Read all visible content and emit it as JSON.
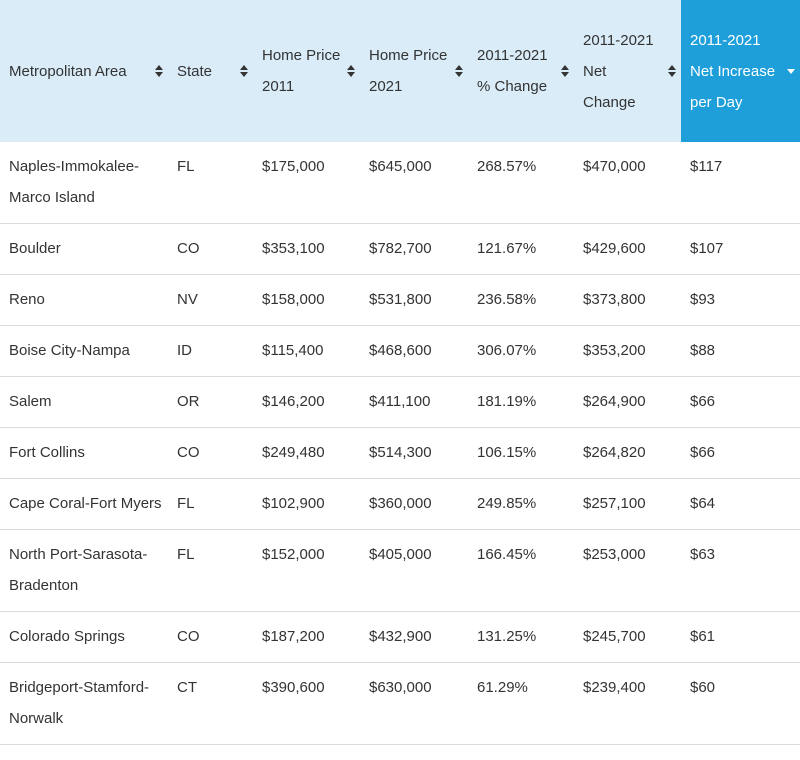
{
  "header": {
    "columns": [
      "Metropolitan Area",
      "State",
      "Home Price 2011",
      "Home Price 2021",
      "2011-2021 % Change",
      "2011-2021 Net Change",
      "2011-2021 Net Increase per Day"
    ]
  },
  "table": {
    "rows": [
      [
        "Naples-Immokalee-Marco Island",
        "FL",
        "$175,000",
        "$645,000",
        "268.57%",
        "$470,000",
        "$117"
      ],
      [
        "Boulder",
        "CO",
        "$353,100",
        "$782,700",
        "121.67%",
        "$429,600",
        "$107"
      ],
      [
        "Reno",
        "NV",
        "$158,000",
        "$531,800",
        "236.58%",
        "$373,800",
        "$93"
      ],
      [
        "Boise City-Nampa",
        "ID",
        "$115,400",
        "$468,600",
        "306.07%",
        "$353,200",
        "$88"
      ],
      [
        "Salem",
        "OR",
        "$146,200",
        "$411,100",
        "181.19%",
        "$264,900",
        "$66"
      ],
      [
        "Fort Collins",
        "CO",
        "$249,480",
        "$514,300",
        "106.15%",
        "$264,820",
        "$66"
      ],
      [
        "Cape Coral-Fort Myers",
        "FL",
        "$102,900",
        "$360,000",
        "249.85%",
        "$257,100",
        "$64"
      ],
      [
        "North Port-Sarasota-Bradenton",
        "FL",
        "$152,000",
        "$405,000",
        "166.45%",
        "$253,000",
        "$63"
      ],
      [
        "Colorado Springs",
        "CO",
        "$187,200",
        "$432,900",
        "131.25%",
        "$245,700",
        "$61"
      ],
      [
        "Bridgeport-Stamford-Norwalk",
        "CT",
        "$390,600",
        "$630,000",
        "61.29%",
        "$239,400",
        "$60"
      ]
    ]
  }
}
